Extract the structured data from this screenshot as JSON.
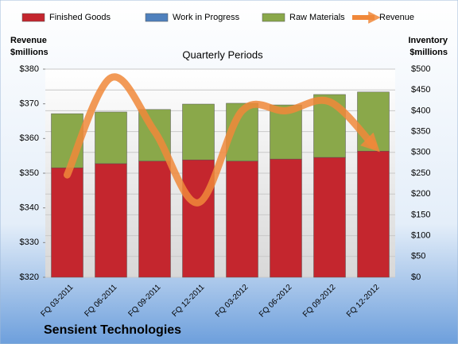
{
  "chart_data": {
    "type": "bar-line",
    "title": "Quarterly Periods",
    "ylabel": [
      "Revenue",
      "$millions"
    ],
    "y2label": [
      "Inventory",
      "$millions"
    ],
    "footer": "Sensient Technologies",
    "categories": [
      "FQ 03-2011",
      "FQ 06-2011",
      "FQ 09-2011",
      "FQ 12-2011",
      "FQ 03-2012",
      "FQ 06-2012",
      "FQ 09-2012",
      "FQ 12-2012"
    ],
    "series": [
      {
        "name": "Finished Goods",
        "color": "#c4262e",
        "type": "bar",
        "axis": "y2",
        "values": [
          263,
          273,
          279,
          282,
          279,
          284,
          288,
          303
        ]
      },
      {
        "name": "Work in Progress",
        "color": "#4f81bd",
        "type": "bar",
        "axis": "y2",
        "values": [
          0,
          0,
          0,
          0,
          0,
          0,
          0,
          0
        ]
      },
      {
        "name": "Raw Materials",
        "color": "#8aa84a",
        "type": "bar",
        "axis": "y2",
        "values": [
          130,
          124,
          124,
          134,
          139,
          130,
          151,
          142
        ]
      },
      {
        "name": "Revenue",
        "color": "#f0883a",
        "type": "line",
        "axis": "y",
        "values": [
          349.5,
          377.5,
          362,
          341.5,
          368,
          368,
          370.6,
          358
        ]
      }
    ],
    "ylim": [
      320,
      380
    ],
    "yticks": [
      {
        "value": 320,
        "label": "$320"
      },
      {
        "value": 330,
        "label": "$330"
      },
      {
        "value": 340,
        "label": "$340"
      },
      {
        "value": 350,
        "label": "$350"
      },
      {
        "value": 360,
        "label": "$360"
      },
      {
        "value": 370,
        "label": "$370"
      },
      {
        "value": 380,
        "label": "$380"
      }
    ],
    "y2lim": [
      0,
      500
    ],
    "y2ticks": [
      {
        "value": 0,
        "label": "$0"
      },
      {
        "value": 50,
        "label": "$50"
      },
      {
        "value": 100,
        "label": "$100"
      },
      {
        "value": 150,
        "label": "$150"
      },
      {
        "value": 200,
        "label": "$200"
      },
      {
        "value": 250,
        "label": "$250"
      },
      {
        "value": 300,
        "label": "$300"
      },
      {
        "value": 350,
        "label": "$350"
      },
      {
        "value": 400,
        "label": "$400"
      },
      {
        "value": 450,
        "label": "$450"
      },
      {
        "value": 500,
        "label": "$500"
      }
    ],
    "grid": true
  }
}
